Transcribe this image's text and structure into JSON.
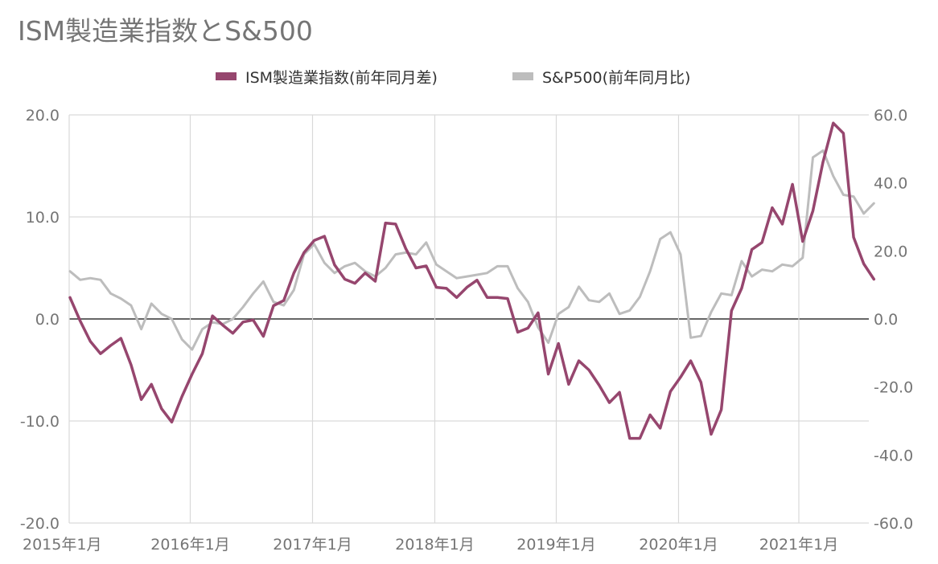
{
  "chart_data": {
    "type": "line",
    "title": "ISM製造業指数とS&500",
    "x_start": "2015年1月",
    "x_tick_labels": [
      "2015年1月",
      "2016年1月",
      "2017年1月",
      "2018年1月",
      "2019年1月",
      "2020年1月",
      "2021年1月"
    ],
    "y_left": {
      "ylim": [
        -20,
        20
      ],
      "ticks": [
        "-20.0",
        "-10.0",
        "0.0",
        "10.0",
        "20.0"
      ]
    },
    "y_right": {
      "ylim": [
        -60,
        60
      ],
      "ticks": [
        "-60.0",
        "-40.0",
        "-20.0",
        "0.0",
        "20.0",
        "40.0",
        "60.0"
      ]
    },
    "grid": true,
    "legend_position": "top",
    "series": [
      {
        "name": "ISM製造業指数(前年同月差)",
        "axis": "left",
        "color": "#96466e",
        "values": [
          2.1,
          -0.2,
          -2.2,
          -3.4,
          -2.6,
          -1.9,
          -4.5,
          -7.9,
          -6.4,
          -8.8,
          -10.1,
          -7.6,
          -5.4,
          -3.4,
          0.3,
          -0.6,
          -1.4,
          -0.3,
          -0.1,
          -1.7,
          1.3,
          1.8,
          4.5,
          6.5,
          7.7,
          8.1,
          5.3,
          3.9,
          3.5,
          4.5,
          3.7,
          9.4,
          9.3,
          6.9,
          5.0,
          5.2,
          3.1,
          3.0,
          2.1,
          3.1,
          3.8,
          2.1,
          2.1,
          2.0,
          -1.3,
          -0.9,
          0.6,
          -5.4,
          -2.4,
          -6.4,
          -4.1,
          -5.0,
          -6.5,
          -8.2,
          -7.2,
          -11.7,
          -11.7,
          -9.4,
          -10.7,
          -7.1,
          -5.7,
          -4.1,
          -6.2,
          -11.3,
          -8.9,
          0.8,
          3.0,
          6.8,
          7.5,
          10.9,
          9.3,
          13.2,
          7.6,
          10.6,
          15.4,
          19.2,
          18.2,
          8.0,
          5.4,
          3.9
        ]
      },
      {
        "name": "S&P500(前年同月比)",
        "axis": "right",
        "color": "#bdbdbd",
        "values": [
          14.0,
          11.5,
          12.0,
          11.5,
          7.5,
          6.0,
          4.0,
          -3.0,
          4.5,
          1.5,
          0.0,
          -6.0,
          -9.0,
          -3.0,
          -1.0,
          -1.5,
          0.0,
          3.5,
          7.5,
          11.0,
          5.0,
          4.0,
          8.5,
          19.0,
          22.0,
          16.5,
          13.5,
          15.5,
          16.5,
          14.0,
          12.5,
          15.0,
          19.0,
          19.5,
          19.0,
          22.5,
          16.0,
          14.0,
          12.0,
          12.5,
          13.0,
          13.5,
          15.5,
          15.5,
          9.0,
          5.0,
          -2.5,
          -7.0,
          1.5,
          3.5,
          9.5,
          5.5,
          5.0,
          7.5,
          1.5,
          2.5,
          6.5,
          14.0,
          23.5,
          25.5,
          19.0,
          -5.5,
          -5.0,
          2.0,
          7.5,
          7.0,
          17.0,
          12.5,
          14.5,
          14.0,
          16.0,
          15.5,
          18.0,
          47.5,
          49.5,
          42.0,
          36.5,
          36.0,
          31.0,
          34.0
        ]
      }
    ]
  }
}
